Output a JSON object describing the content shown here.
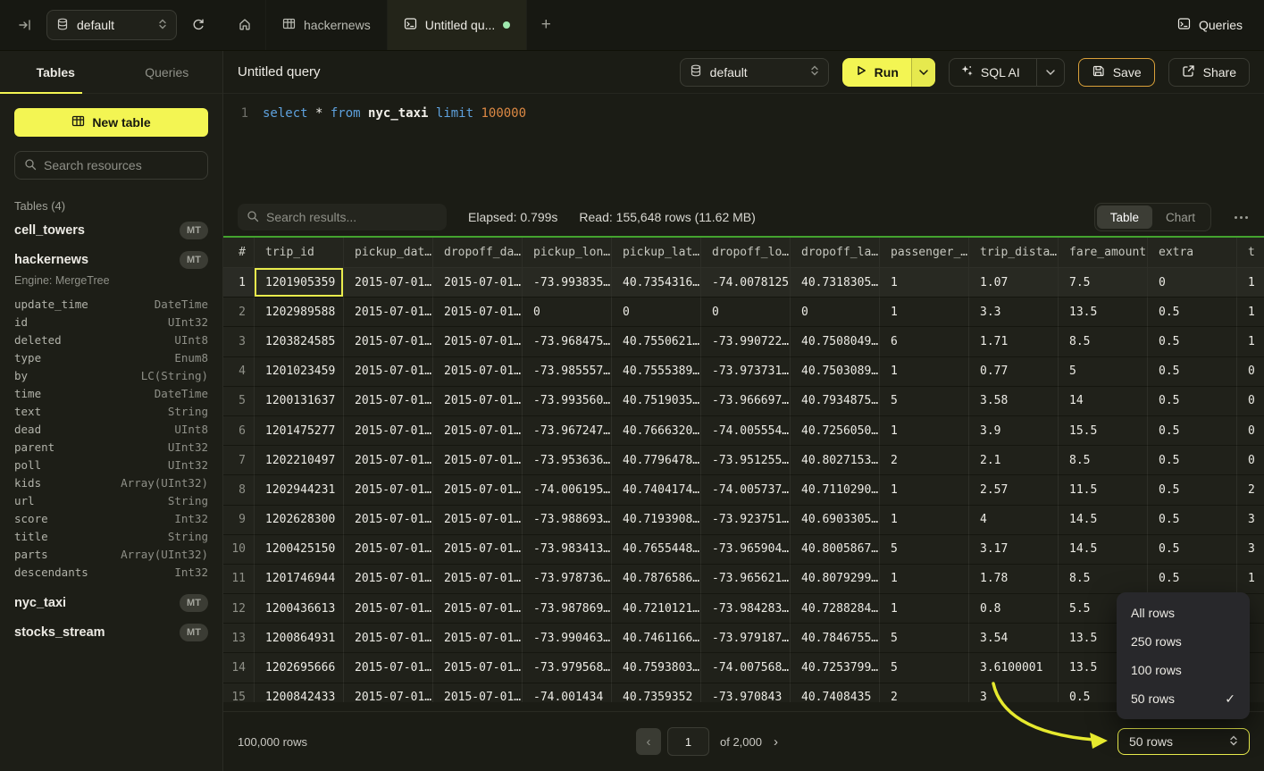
{
  "colors": {
    "accent_yellow": "#f3f553",
    "save_border": "#daa13a",
    "results_bar_green": "#43a32e",
    "tab_dot_green": "#9fe8ae",
    "annotation_arrow": "#e6e92e",
    "selected_cell_border": "#e9ec4d"
  },
  "icons": {
    "collapse-sidebar": "→|",
    "database": "cylinder",
    "refresh": "↻",
    "home": "house",
    "table": "grid",
    "terminal": "console",
    "plus": "+",
    "chevron-down": "⌄",
    "updown": "⇅",
    "play": "▷",
    "sparkles": "✦",
    "save": "floppy",
    "share": "box-arrow",
    "search": "magnifier",
    "ellipsis": "⋯",
    "check": "✓",
    "chevron-left": "‹",
    "chevron-right": "›"
  },
  "topbar": {
    "database_label": "default",
    "tab_hackernews": "hackernews",
    "tab_untitled": "Untitled qu...",
    "queries_label": "Queries"
  },
  "sidebar": {
    "tab_tables": "Tables",
    "tab_queries": "Queries",
    "new_table": "New table",
    "search_placeholder": "Search resources",
    "section_label": "Tables (4)",
    "tables": [
      {
        "name": "cell_towers",
        "badge": "MT"
      },
      {
        "name": "hackernews",
        "badge": "MT",
        "engine": "Engine: MergeTree",
        "columns": [
          {
            "name": "update_time",
            "type": "DateTime"
          },
          {
            "name": "id",
            "type": "UInt32"
          },
          {
            "name": "deleted",
            "type": "UInt8"
          },
          {
            "name": "type",
            "type": "Enum8"
          },
          {
            "name": "by",
            "type": "LC(String)"
          },
          {
            "name": "time",
            "type": "DateTime"
          },
          {
            "name": "text",
            "type": "String"
          },
          {
            "name": "dead",
            "type": "UInt8"
          },
          {
            "name": "parent",
            "type": "UInt32"
          },
          {
            "name": "poll",
            "type": "UInt32"
          },
          {
            "name": "kids",
            "type": "Array(UInt32)"
          },
          {
            "name": "url",
            "type": "String"
          },
          {
            "name": "score",
            "type": "Int32"
          },
          {
            "name": "title",
            "type": "String"
          },
          {
            "name": "parts",
            "type": "Array(UInt32)"
          },
          {
            "name": "descendants",
            "type": "Int32"
          }
        ]
      },
      {
        "name": "nyc_taxi",
        "badge": "MT"
      },
      {
        "name": "stocks_stream",
        "badge": "MT"
      }
    ]
  },
  "editor": {
    "title": "Untitled query",
    "toolbar": {
      "database": "default",
      "run": "Run",
      "sql_ai": "SQL AI",
      "save": "Save",
      "share": "Share"
    },
    "code": {
      "line_number": "1",
      "text": "select * from nyc_taxi limit 100000",
      "tokens": [
        {
          "text": "select ",
          "type": "keyword"
        },
        {
          "text": "* ",
          "type": "plain"
        },
        {
          "text": "from ",
          "type": "keyword"
        },
        {
          "text": "nyc_taxi ",
          "type": "identifier"
        },
        {
          "text": "limit ",
          "type": "keyword"
        },
        {
          "text": "100000",
          "type": "number"
        }
      ]
    }
  },
  "results": {
    "search_placeholder": "Search results...",
    "elapsed": "Elapsed: 0.799s",
    "read": "Read: 155,648 rows (11.62 MB)",
    "view_table": "Table",
    "view_chart": "Chart",
    "table": {
      "selected_cell": {
        "row": 1,
        "column": "trip_id"
      },
      "columns": [
        "#",
        "trip_id",
        "pickup_dat…",
        "dropoff_da…",
        "pickup_lon…",
        "pickup_lat…",
        "dropoff_lo…",
        "dropoff_la…",
        "passenger_…",
        "trip_dista…",
        "fare_amount",
        "extra",
        "t"
      ],
      "rows": [
        [
          "1201905359",
          "2015-07-01…",
          "2015-07-01…",
          "-73.993835…",
          "40.7354316…",
          "-74.0078125",
          "40.7318305…",
          "1",
          "1.07",
          "7.5",
          "0",
          "1"
        ],
        [
          "1202989588",
          "2015-07-01…",
          "2015-07-01…",
          "0",
          "0",
          "0",
          "0",
          "1",
          "3.3",
          "13.5",
          "0.5",
          "1"
        ],
        [
          "1203824585",
          "2015-07-01…",
          "2015-07-01…",
          "-73.968475…",
          "40.7550621…",
          "-73.990722…",
          "40.7508049…",
          "6",
          "1.71",
          "8.5",
          "0.5",
          "1"
        ],
        [
          "1201023459",
          "2015-07-01…",
          "2015-07-01…",
          "-73.985557…",
          "40.7555389…",
          "-73.973731…",
          "40.7503089…",
          "1",
          "0.77",
          "5",
          "0.5",
          "0"
        ],
        [
          "1200131637",
          "2015-07-01…",
          "2015-07-01…",
          "-73.993560…",
          "40.7519035…",
          "-73.966697…",
          "40.7934875…",
          "5",
          "3.58",
          "14",
          "0.5",
          "0"
        ],
        [
          "1201475277",
          "2015-07-01…",
          "2015-07-01…",
          "-73.967247…",
          "40.7666320…",
          "-74.005554…",
          "40.7256050…",
          "1",
          "3.9",
          "15.5",
          "0.5",
          "0"
        ],
        [
          "1202210497",
          "2015-07-01…",
          "2015-07-01…",
          "-73.953636…",
          "40.7796478…",
          "-73.951255…",
          "40.8027153…",
          "2",
          "2.1",
          "8.5",
          "0.5",
          "0"
        ],
        [
          "1202944231",
          "2015-07-01…",
          "2015-07-01…",
          "-74.006195…",
          "40.7404174…",
          "-74.005737…",
          "40.7110290…",
          "1",
          "2.57",
          "11.5",
          "0.5",
          "2"
        ],
        [
          "1202628300",
          "2015-07-01…",
          "2015-07-01…",
          "-73.988693…",
          "40.7193908…",
          "-73.923751…",
          "40.6903305…",
          "1",
          "4",
          "14.5",
          "0.5",
          "3"
        ],
        [
          "1200425150",
          "2015-07-01…",
          "2015-07-01…",
          "-73.983413…",
          "40.7655448…",
          "-73.965904…",
          "40.8005867…",
          "5",
          "3.17",
          "14.5",
          "0.5",
          "3"
        ],
        [
          "1201746944",
          "2015-07-01…",
          "2015-07-01…",
          "-73.978736…",
          "40.7876586…",
          "-73.965621…",
          "40.8079299…",
          "1",
          "1.78",
          "8.5",
          "0.5",
          "1"
        ],
        [
          "1200436613",
          "2015-07-01…",
          "2015-07-01…",
          "-73.987869…",
          "40.7210121…",
          "-73.984283…",
          "40.7288284…",
          "1",
          "0.8",
          "5.5",
          "",
          ""
        ],
        [
          "1200864931",
          "2015-07-01…",
          "2015-07-01…",
          "-73.990463…",
          "40.7461166…",
          "-73.979187…",
          "40.7846755…",
          "5",
          "3.54",
          "13.5",
          "",
          ""
        ],
        [
          "1202695666",
          "2015-07-01…",
          "2015-07-01…",
          "-73.979568…",
          "40.7593803…",
          "-74.007568…",
          "40.7253799…",
          "5",
          "3.6100001",
          "13.5",
          "",
          ""
        ],
        [
          "1200842433",
          "2015-07-01…",
          "2015-07-01…",
          "-74.001434",
          "40.7359352",
          "-73.970843",
          "40.7408435",
          "2",
          "3",
          "0.5",
          "",
          ""
        ]
      ]
    },
    "footer": {
      "total_rows": "100,000 rows",
      "page_value": "1",
      "page_of": "of 2,000"
    },
    "page_size": {
      "button_label": "50 rows",
      "menu_options": [
        {
          "label": "All rows",
          "checked": false
        },
        {
          "label": "250 rows",
          "checked": false
        },
        {
          "label": "100 rows",
          "checked": false
        },
        {
          "label": "50 rows",
          "checked": true
        }
      ]
    }
  }
}
